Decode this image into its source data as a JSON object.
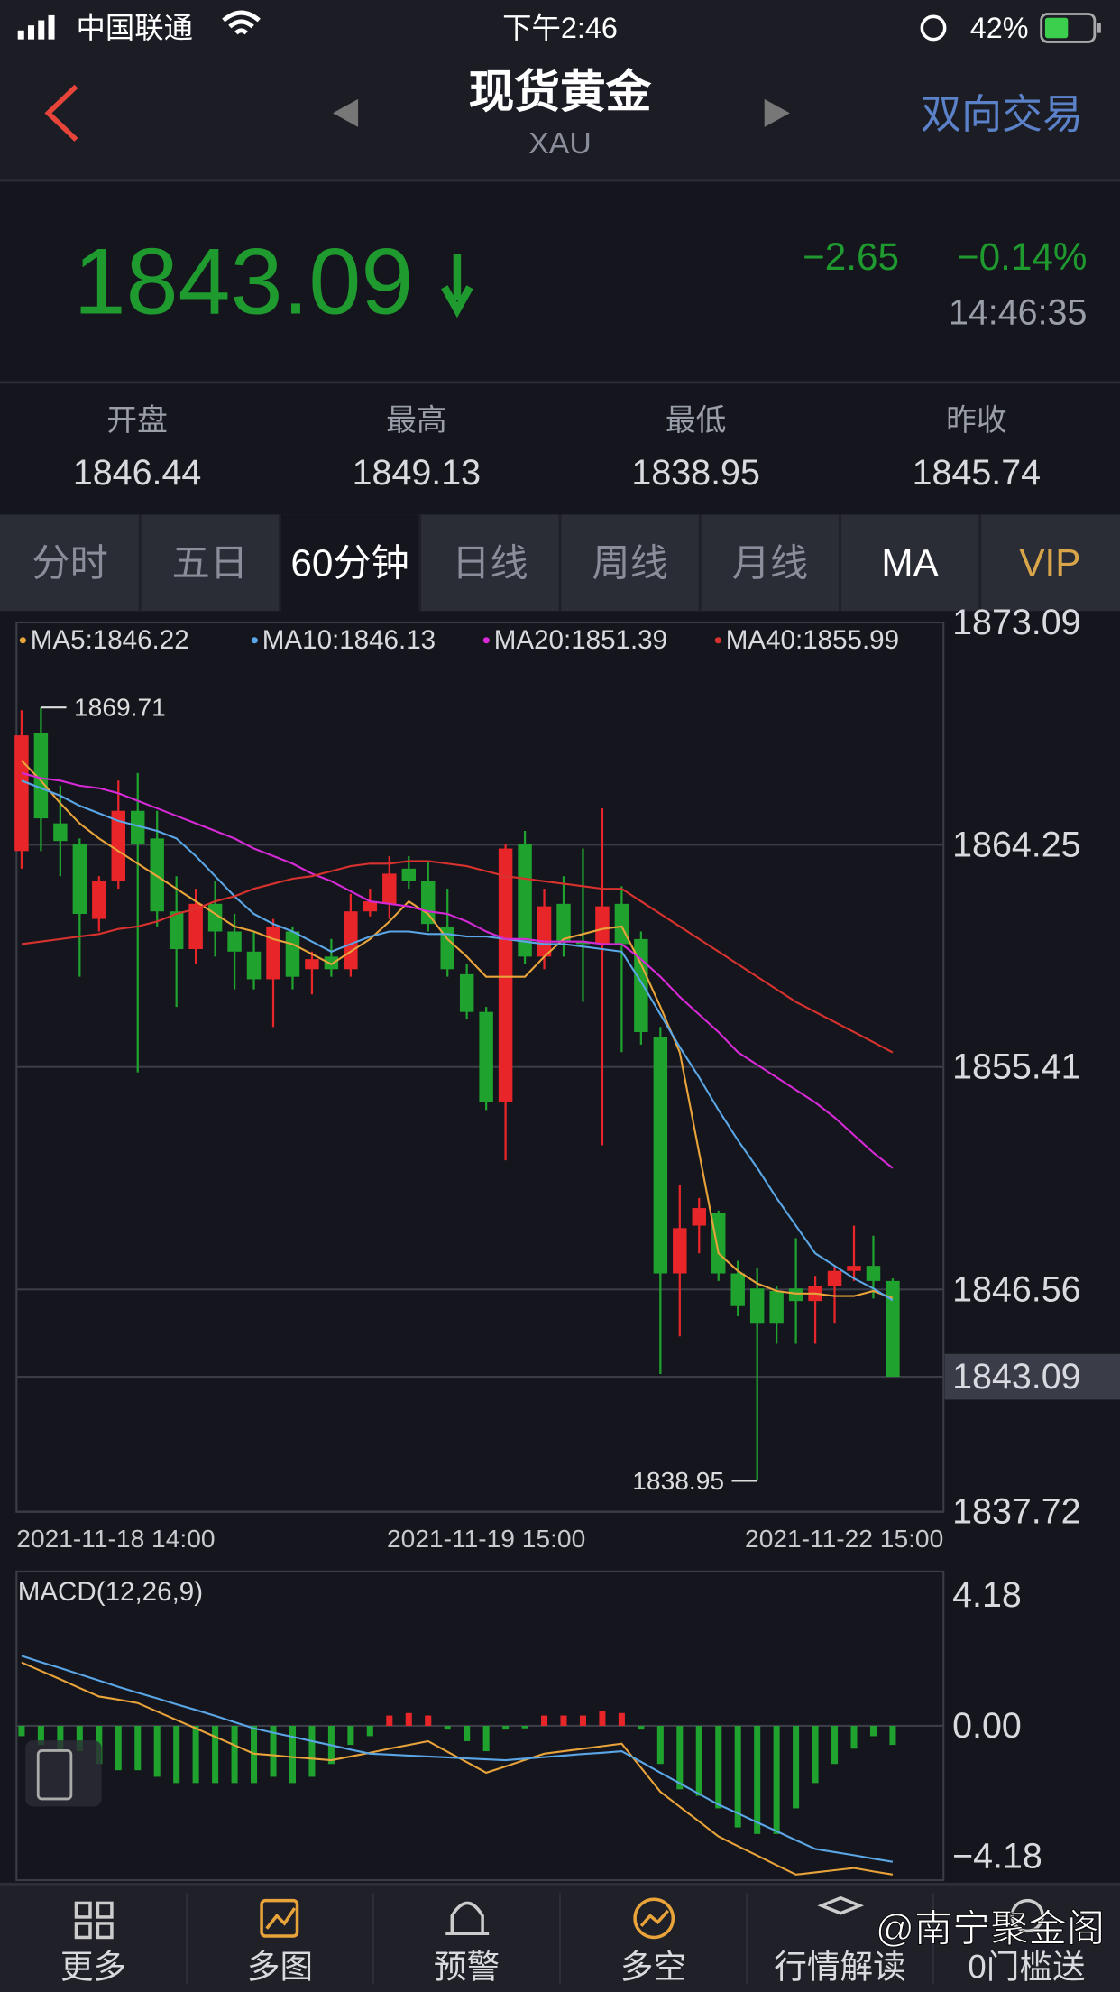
{
  "status_bar": {
    "carrier": "中国联通",
    "time": "下午2:46",
    "battery": "42%"
  },
  "header": {
    "title": "现货黄金",
    "subtitle": "XAU",
    "action": "双向交易"
  },
  "quote": {
    "price": "1843.09",
    "change": "−2.65",
    "change_pct": "−0.14%",
    "time": "14:46:35"
  },
  "stats": [
    {
      "label": "开盘",
      "value": "1846.44"
    },
    {
      "label": "最高",
      "value": "1849.13"
    },
    {
      "label": "最低",
      "value": "1838.95"
    },
    {
      "label": "昨收",
      "value": "1845.74"
    }
  ],
  "tabs": [
    "分时",
    "五日",
    "60分钟",
    "日线",
    "周线",
    "月线",
    "MA",
    "VIP"
  ],
  "chart_data": [
    {
      "type": "candlestick",
      "up_color": "#e8262a",
      "down_color": "#1fa22e",
      "categories": [
        "2021-11-18 14:00",
        null,
        null,
        null,
        null,
        null,
        null,
        null,
        null,
        null,
        null,
        null,
        null,
        null,
        null,
        null,
        null,
        null,
        null,
        null,
        null,
        null,
        null,
        null,
        "2021-11-19 15:00",
        null,
        null,
        null,
        null,
        null,
        null,
        null,
        null,
        null,
        null,
        null,
        null,
        null,
        null,
        null,
        null,
        null,
        null,
        null,
        null,
        "2021-11-22 15:00"
      ],
      "open": [
        1864.0,
        1868.7,
        1865.1,
        1864.3,
        1861.3,
        1862.8,
        1865.6,
        1864.5,
        1861.6,
        1860.1,
        1861.9,
        1860.8,
        1860.0,
        1858.9,
        1860.8,
        1859.3,
        1859.8,
        1859.3,
        1861.6,
        1861.9,
        1863.3,
        1862.8,
        1861.0,
        1859.1,
        1857.6,
        1854.0,
        1864.3,
        1859.8,
        1861.9,
        1860.4,
        1860.3,
        1861.9,
        1860.5,
        1856.6,
        1847.2,
        1849.1,
        1849.6,
        1847.2,
        1846.6,
        1846.5,
        1846.6,
        1846.1,
        1846.7,
        1847.3,
        1847.5,
        1846.9
      ],
      "high": [
        1869.6,
        1869.71,
        1866.6,
        1864.5,
        1863.0,
        1866.8,
        1867.1,
        1865.6,
        1863.0,
        1862.5,
        1862.8,
        1861.5,
        1860.8,
        1861.3,
        1861.0,
        1860.0,
        1860.5,
        1862.3,
        1862.5,
        1863.8,
        1863.8,
        1863.6,
        1862.5,
        1859.5,
        1857.8,
        1864.3,
        1864.8,
        1862.5,
        1863.0,
        1864.1,
        1865.7,
        1862.6,
        1860.8,
        1857.0,
        1850.7,
        1850.2,
        1849.7,
        1847.7,
        1847.4,
        1846.7,
        1848.6,
        1847.1,
        1847.5,
        1849.1,
        1848.7,
        1847.0
      ],
      "low": [
        1863.3,
        1864.0,
        1863.0,
        1859.0,
        1860.8,
        1862.5,
        1855.2,
        1861.0,
        1857.8,
        1859.5,
        1859.8,
        1858.5,
        1858.5,
        1857.0,
        1858.5,
        1858.3,
        1859.0,
        1859.0,
        1861.4,
        1861.3,
        1862.5,
        1860.8,
        1859.0,
        1857.3,
        1853.7,
        1851.7,
        1859.5,
        1859.3,
        1859.8,
        1858.0,
        1852.3,
        1856.0,
        1856.3,
        1843.2,
        1844.7,
        1848.0,
        1846.9,
        1845.5,
        1838.95,
        1844.4,
        1844.4,
        1844.4,
        1845.2,
        1846.9,
        1846.2,
        1843.09
      ],
      "close": [
        1868.6,
        1865.3,
        1864.4,
        1861.5,
        1862.8,
        1865.6,
        1864.3,
        1861.6,
        1860.1,
        1861.9,
        1860.8,
        1860.0,
        1858.9,
        1861.0,
        1859.0,
        1859.7,
        1859.3,
        1861.6,
        1862.0,
        1863.1,
        1862.8,
        1861.1,
        1859.3,
        1857.6,
        1854.0,
        1864.1,
        1859.8,
        1861.8,
        1860.4,
        1860.3,
        1861.8,
        1860.3,
        1856.8,
        1847.2,
        1849.0,
        1849.8,
        1847.2,
        1845.9,
        1845.2,
        1845.2,
        1846.1,
        1846.7,
        1847.3,
        1847.5,
        1846.9,
        1843.09
      ],
      "series": [
        {
          "name": "MA5:1846.22",
          "color": "#e8a33a",
          "values": [
            1867.6,
            1866.8,
            1865.9,
            1865.1,
            1864.5,
            1864.0,
            1863.5,
            1863.0,
            1862.5,
            1862.0,
            1861.5,
            1861.0,
            1860.8,
            1860.5,
            1860.3,
            1859.9,
            1859.5,
            1860.0,
            1860.5,
            1861.2,
            1862.0,
            1861.5,
            1860.5,
            1859.8,
            1859.0,
            1859.0,
            1859.0,
            1859.8,
            1860.5,
            1860.7,
            1860.9,
            1861.0,
            1859.5,
            1857.8,
            1856.0,
            1852.0,
            1848.0,
            1847.3,
            1846.8,
            1846.5,
            1846.4,
            1846.4,
            1846.3,
            1846.3,
            1846.5,
            1846.22
          ]
        },
        {
          "name": "MA10:1846.13",
          "color": "#5aa6e6",
          "values": [
            1866.8,
            1866.5,
            1866.2,
            1865.8,
            1865.5,
            1865.2,
            1865.0,
            1864.8,
            1864.5,
            1863.8,
            1863.0,
            1862.2,
            1861.5,
            1861.1,
            1860.8,
            1860.4,
            1860.0,
            1860.3,
            1860.6,
            1860.8,
            1860.8,
            1860.7,
            1860.7,
            1860.6,
            1860.6,
            1860.5,
            1860.4,
            1860.3,
            1860.3,
            1860.2,
            1860.1,
            1860.0,
            1858.8,
            1857.5,
            1856.2,
            1855.0,
            1853.7,
            1852.5,
            1851.4,
            1850.2,
            1849.1,
            1848.0,
            1847.5,
            1847.0,
            1846.6,
            1846.13
          ]
        },
        {
          "name": "MA20:1851.39",
          "color": "#d62ad6",
          "values": [
            1867.1,
            1866.9,
            1866.8,
            1866.6,
            1866.5,
            1866.3,
            1866.0,
            1865.7,
            1865.4,
            1865.1,
            1864.8,
            1864.5,
            1864.1,
            1863.8,
            1863.5,
            1863.1,
            1862.8,
            1862.4,
            1862.0,
            1861.9,
            1861.8,
            1861.6,
            1861.5,
            1861.2,
            1860.8,
            1860.5,
            1860.5,
            1860.4,
            1860.4,
            1860.4,
            1860.3,
            1860.3,
            1859.7,
            1859.0,
            1858.2,
            1857.5,
            1856.8,
            1856.0,
            1855.5,
            1855.0,
            1854.5,
            1854.0,
            1853.4,
            1852.7,
            1852.0,
            1851.39
          ]
        },
        {
          "name": "MA40:1855.99",
          "color": "#d8322e",
          "values": [
            1860.3,
            1860.4,
            1860.5,
            1860.6,
            1860.7,
            1860.9,
            1861.0,
            1861.2,
            1861.5,
            1861.7,
            1862.0,
            1862.2,
            1862.5,
            1862.7,
            1862.9,
            1863.0,
            1863.2,
            1863.4,
            1863.5,
            1863.5,
            1863.6,
            1863.6,
            1863.5,
            1863.4,
            1863.2,
            1863.0,
            1862.9,
            1862.8,
            1862.7,
            1862.6,
            1862.5,
            1862.5,
            1862.0,
            1861.5,
            1861.0,
            1860.5,
            1860.0,
            1859.5,
            1859.0,
            1858.5,
            1858.0,
            1857.6,
            1857.2,
            1856.8,
            1856.4,
            1855.99
          ]
        }
      ],
      "ylim": [
        1837.72,
        1873.09
      ],
      "yticks": [
        1837.72,
        1843.09,
        1846.56,
        1855.41,
        1864.25,
        1873.09
      ],
      "grid": true
    },
    {
      "type": "macd",
      "title": "MACD(12,26,9)",
      "up_color": "#e8262a",
      "down_color": "#1fa22e",
      "values": [
        -0.33,
        -0.61,
        -0.81,
        -0.81,
        -1.22,
        -1.42,
        -1.42,
        -1.63,
        -1.83,
        -1.83,
        -1.83,
        -1.83,
        -1.83,
        -1.63,
        -1.83,
        -1.63,
        -1.22,
        -0.61,
        -0.33,
        0.33,
        0.41,
        0.33,
        -0.12,
        -0.49,
        -0.81,
        -0.12,
        -0.08,
        0.33,
        0.33,
        0.33,
        0.49,
        0.41,
        -0.12,
        -1.22,
        -2.03,
        -2.24,
        -2.64,
        -3.25,
        -3.46,
        -3.46,
        -2.64,
        -1.83,
        -1.22,
        -0.73,
        -0.33,
        -0.61
      ],
      "series": [
        {
          "color": "#e8a33a",
          "values": [
            2.03,
            1.76,
            1.49,
            1.21,
            0.94,
            0.84,
            0.73,
            0.46,
            0.19,
            -0.08,
            -0.35,
            -0.62,
            -0.89,
            -0.94,
            -1.0,
            -1.05,
            -1.1,
            -0.98,
            -0.86,
            -0.73,
            -0.61,
            -0.49,
            -0.83,
            -1.16,
            -1.5,
            -1.3,
            -1.09,
            -0.89,
            -0.81,
            -0.73,
            -0.65,
            -0.57,
            -1.34,
            -2.11,
            -2.59,
            -3.06,
            -3.54,
            -3.85,
            -4.15,
            -4.46,
            -4.76,
            -4.69,
            -4.62,
            -4.55,
            -4.66,
            -4.76
          ]
        },
        {
          "color": "#5aa6e6",
          "values": [
            2.24,
            2.04,
            1.85,
            1.65,
            1.45,
            1.25,
            1.06,
            0.88,
            0.69,
            0.51,
            0.32,
            0.12,
            -0.08,
            -0.22,
            -0.35,
            -0.49,
            -0.62,
            -0.76,
            -0.89,
            -0.92,
            -0.95,
            -0.98,
            -1.01,
            -1.04,
            -1.07,
            -1.1,
            -1.05,
            -1.0,
            -0.95,
            -0.9,
            -0.86,
            -0.81,
            -1.15,
            -1.5,
            -1.84,
            -2.18,
            -2.52,
            -2.8,
            -3.09,
            -3.37,
            -3.66,
            -3.94,
            -4.04,
            -4.14,
            -4.25,
            -4.35
          ]
        }
      ],
      "ylim": [
        -4.94,
        4.94
      ],
      "yticks": [
        {
          "value": 4.18,
          "label": "4.18"
        },
        {
          "value": 0,
          "label": "0.00"
        },
        {
          "value": -4.18,
          "label": "−4.18"
        }
      ]
    }
  ],
  "nav": [
    "更多",
    "多图",
    "预警",
    "多空",
    "行情解读",
    "0门槛送"
  ],
  "watermark": "@南宁聚金阁"
}
